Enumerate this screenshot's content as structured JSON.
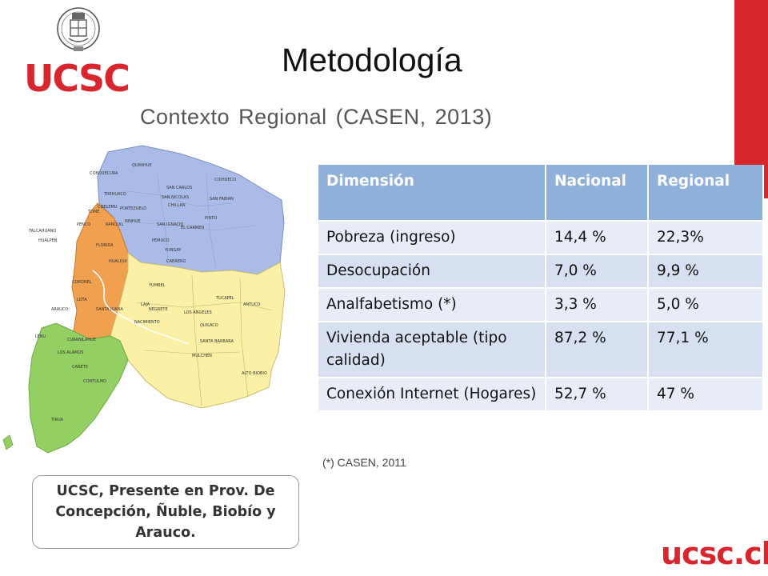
{
  "header": {
    "logo_text": "UCSC",
    "title": "Metodología",
    "subtitle": "Contexto Regional (CASEN, 2013)"
  },
  "table": {
    "headers": [
      "Dimensión",
      "Nacional",
      "Regional"
    ],
    "rows": [
      [
        "Pobreza (ingreso)",
        "14,4 %",
        "22,3%"
      ],
      [
        "Desocupación",
        "7,0 %",
        "9,9 %"
      ],
      [
        "Analfabetismo (*)",
        "3,3 %",
        "5,0 %"
      ],
      [
        "Vivienda aceptable (tipo calidad)",
        "87,2 %",
        "77,1 %"
      ],
      [
        "Conexión Internet (Hogares)",
        "52,7 %",
        "47 %"
      ]
    ]
  },
  "footnote": "(*) CASEN, 2011",
  "caption": "UCSC, Presente en Prov. De Concepción, Ñuble, Biobío y Arauco.",
  "footer": {
    "brand_url": "ucsc.cl"
  },
  "map": {
    "colors": {
      "nuble": "#a9bbe6",
      "concepcion": "#f0a04e",
      "biobio": "#fbf0a6",
      "arauco": "#93cf63"
    },
    "labels": [
      "COBQUECURA",
      "TREHUACO",
      "QUIRIHUE",
      "PORTEZUELO",
      "NINHUE",
      "SAN CARLOS",
      "COIHUECO",
      "CHILLAN",
      "PINTO",
      "COELEMU",
      "RANQUIL",
      "SAN NICOLAS",
      "SAN FABIAN",
      "SAN IGNACIO",
      "EL CARMEN",
      "PEMUCO",
      "YUNGAY",
      "TALCAHUANO",
      "PENCO",
      "TOME",
      "HUALPEN",
      "CORONEL",
      "LOTA",
      "HUALQUI",
      "SANTA JUANA",
      "FLORIDA",
      "LOS ANGELES",
      "MULCHEN",
      "NACIMIENTO",
      "NEGRETE",
      "QUILACO",
      "SANTA BARBARA",
      "ALTO BIOBIO",
      "CABRERO",
      "YUMBEL",
      "TUCAPEL",
      "ANTUCO",
      "LAJA",
      "ARAUCO",
      "CURANILAHUE",
      "LOS ALAMOS",
      "CAÑETE",
      "CONTULMO",
      "TIRUA",
      "LEBU"
    ],
    "accent": "#d8262e"
  }
}
